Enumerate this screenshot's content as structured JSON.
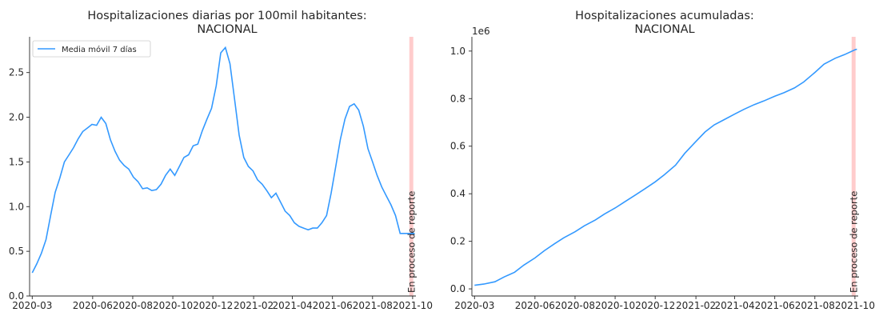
{
  "chart_data": [
    {
      "type": "line",
      "title_line1": "Hospitalizaciones diarias por 100mil habitantes:",
      "title_line2": "NACIONAL",
      "legend": "Media móvil 7 días",
      "legend_position": "top-left",
      "line_color": "#3399ff",
      "band_color": "#ffcccc",
      "band_label": "En proceso de reporte",
      "grid": false,
      "x_ticks": [
        "2020-03",
        "2020-06",
        "2020-08",
        "2020-10",
        "2020-12",
        "2021-02",
        "2021-04",
        "2021-06",
        "2021-08",
        "2021-10"
      ],
      "y_ticks": [
        "0.0",
        "0.5",
        "1.0",
        "1.5",
        "2.0",
        "2.5"
      ],
      "ylim": [
        0,
        2.9
      ],
      "band": [
        "2021-09-26",
        "2021-10-02"
      ],
      "series": [
        {
          "x": [
            "2020-03-01",
            "2020-03-08",
            "2020-03-15",
            "2020-03-22",
            "2020-03-29",
            "2020-04-05",
            "2020-04-12",
            "2020-04-19",
            "2020-04-26",
            "2020-05-03",
            "2020-05-10",
            "2020-05-17",
            "2020-05-24",
            "2020-05-31",
            "2020-06-07",
            "2020-06-14",
            "2020-06-21",
            "2020-06-28",
            "2020-07-05",
            "2020-07-12",
            "2020-07-19",
            "2020-07-26",
            "2020-08-02",
            "2020-08-09",
            "2020-08-16",
            "2020-08-23",
            "2020-08-30",
            "2020-09-06",
            "2020-09-13",
            "2020-09-20",
            "2020-09-27",
            "2020-10-04",
            "2020-10-11",
            "2020-10-18",
            "2020-10-25",
            "2020-11-01",
            "2020-11-08",
            "2020-11-15",
            "2020-11-22",
            "2020-11-29",
            "2020-12-06",
            "2020-12-13",
            "2020-12-20",
            "2020-12-27",
            "2021-01-03",
            "2021-01-10",
            "2021-01-17",
            "2021-01-24",
            "2021-01-31",
            "2021-02-07",
            "2021-02-14",
            "2021-02-21",
            "2021-02-28",
            "2021-03-07",
            "2021-03-14",
            "2021-03-21",
            "2021-03-28",
            "2021-04-04",
            "2021-04-11",
            "2021-04-18",
            "2021-04-25",
            "2021-05-02",
            "2021-05-09",
            "2021-05-16",
            "2021-05-23",
            "2021-05-30",
            "2021-06-06",
            "2021-06-13",
            "2021-06-20",
            "2021-06-27",
            "2021-07-04",
            "2021-07-11",
            "2021-07-18",
            "2021-07-25",
            "2021-08-01",
            "2021-08-08",
            "2021-08-15",
            "2021-08-22",
            "2021-08-29",
            "2021-09-05",
            "2021-09-12",
            "2021-09-19",
            "2021-09-26",
            "2021-10-01",
            "2021-10-04"
          ],
          "y": [
            0.26,
            0.36,
            0.48,
            0.63,
            0.9,
            1.16,
            1.32,
            1.5,
            1.58,
            1.66,
            1.76,
            1.84,
            1.88,
            1.92,
            1.91,
            2.0,
            1.93,
            1.75,
            1.62,
            1.52,
            1.46,
            1.42,
            1.33,
            1.28,
            1.2,
            1.21,
            1.18,
            1.19,
            1.25,
            1.35,
            1.42,
            1.35,
            1.45,
            1.55,
            1.58,
            1.68,
            1.7,
            1.85,
            1.98,
            2.1,
            2.35,
            2.72,
            2.78,
            2.6,
            2.2,
            1.8,
            1.55,
            1.45,
            1.4,
            1.3,
            1.25,
            1.18,
            1.1,
            1.15,
            1.05,
            0.95,
            0.9,
            0.82,
            0.78,
            0.76,
            0.74,
            0.76,
            0.76,
            0.82,
            0.9,
            1.15,
            1.45,
            1.75,
            1.98,
            2.12,
            2.15,
            2.08,
            1.9,
            1.65,
            1.5,
            1.35,
            1.22,
            1.12,
            1.02,
            0.9,
            0.7,
            0.7,
            0.7,
            0.7,
            0.7
          ]
        }
      ]
    },
    {
      "type": "line",
      "title_line1": "Hospitalizaciones acumuladas:",
      "title_line2": "NACIONAL",
      "y_offset_label": "1e6",
      "line_color": "#3399ff",
      "band_color": "#ffcccc",
      "band_label": "En proceso de reporte",
      "grid": false,
      "x_ticks": [
        "2020-03",
        "2020-06",
        "2020-08",
        "2020-10",
        "2020-12",
        "2021-02",
        "2021-04",
        "2021-06",
        "2021-08",
        "2021-10"
      ],
      "y_ticks": [
        "0.0",
        "0.2",
        "0.4",
        "0.6",
        "0.8",
        "1.0"
      ],
      "ylim": [
        -0.03,
        1.06
      ],
      "band": [
        "2021-09-26",
        "2021-10-02"
      ],
      "series": [
        {
          "x": [
            "2020-03-01",
            "2020-03-15",
            "2020-04-01",
            "2020-04-15",
            "2020-05-01",
            "2020-05-15",
            "2020-06-01",
            "2020-06-15",
            "2020-07-01",
            "2020-07-15",
            "2020-08-01",
            "2020-08-15",
            "2020-09-01",
            "2020-09-15",
            "2020-10-01",
            "2020-10-15",
            "2020-11-01",
            "2020-11-15",
            "2020-12-01",
            "2020-12-15",
            "2021-01-01",
            "2021-01-15",
            "2021-02-01",
            "2021-02-15",
            "2021-03-01",
            "2021-03-15",
            "2021-04-01",
            "2021-04-15",
            "2021-05-01",
            "2021-05-15",
            "2021-06-01",
            "2021-06-15",
            "2021-07-01",
            "2021-07-15",
            "2021-08-01",
            "2021-08-15",
            "2021-09-01",
            "2021-09-15",
            "2021-10-01",
            "2021-10-04"
          ],
          "y": [
            0.015,
            0.02,
            0.03,
            0.05,
            0.07,
            0.1,
            0.13,
            0.16,
            0.19,
            0.215,
            0.24,
            0.265,
            0.29,
            0.315,
            0.34,
            0.365,
            0.395,
            0.42,
            0.45,
            0.48,
            0.52,
            0.57,
            0.62,
            0.66,
            0.69,
            0.71,
            0.735,
            0.755,
            0.775,
            0.79,
            0.81,
            0.825,
            0.845,
            0.87,
            0.91,
            0.945,
            0.97,
            0.985,
            1.005,
            1.008
          ]
        }
      ]
    }
  ]
}
